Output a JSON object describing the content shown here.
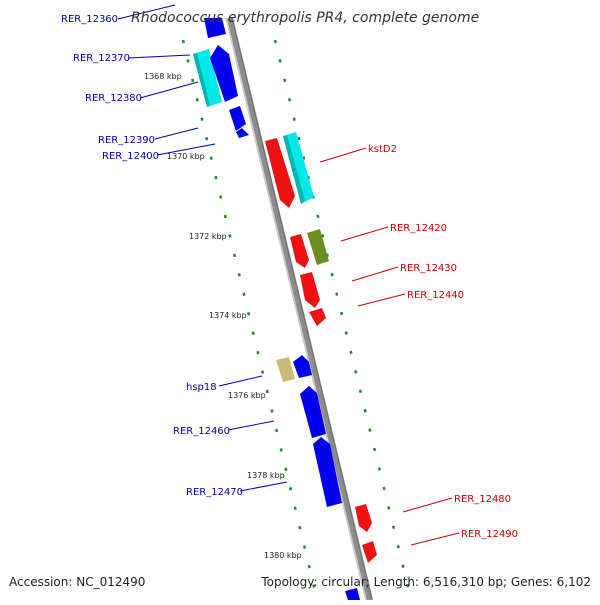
{
  "title": "Rhodococcus erythropolis PR4, complete genome",
  "accession": "Accession: NC_012490",
  "topology": "Topology: circular; Length: 6,516,310 bp; Genes: 6,102",
  "colors": {
    "backbone": "#8c8c8c",
    "tick": "#1a8a1a",
    "blue": "#0000ee",
    "cyan": "#00e8e8",
    "red": "#ee1111",
    "olive": "#6b8e23",
    "khaki": "#c8bb7a"
  },
  "kbp_labels": [
    "1368 kbp",
    "1370 kbp",
    "1372 kbp",
    "1374 kbp",
    "1376 kbp",
    "1378 kbp",
    "1380 kbp"
  ],
  "left_labels": [
    "RER_12360",
    "RER_12370",
    "RER_12380",
    "RER_12390",
    "RER_12400",
    "hsp18",
    "RER_12460",
    "RER_12470"
  ],
  "right_labels": [
    "kstD2",
    "RER_12420",
    "RER_12430",
    "RER_12440",
    "RER_12480",
    "RER_12490"
  ]
}
